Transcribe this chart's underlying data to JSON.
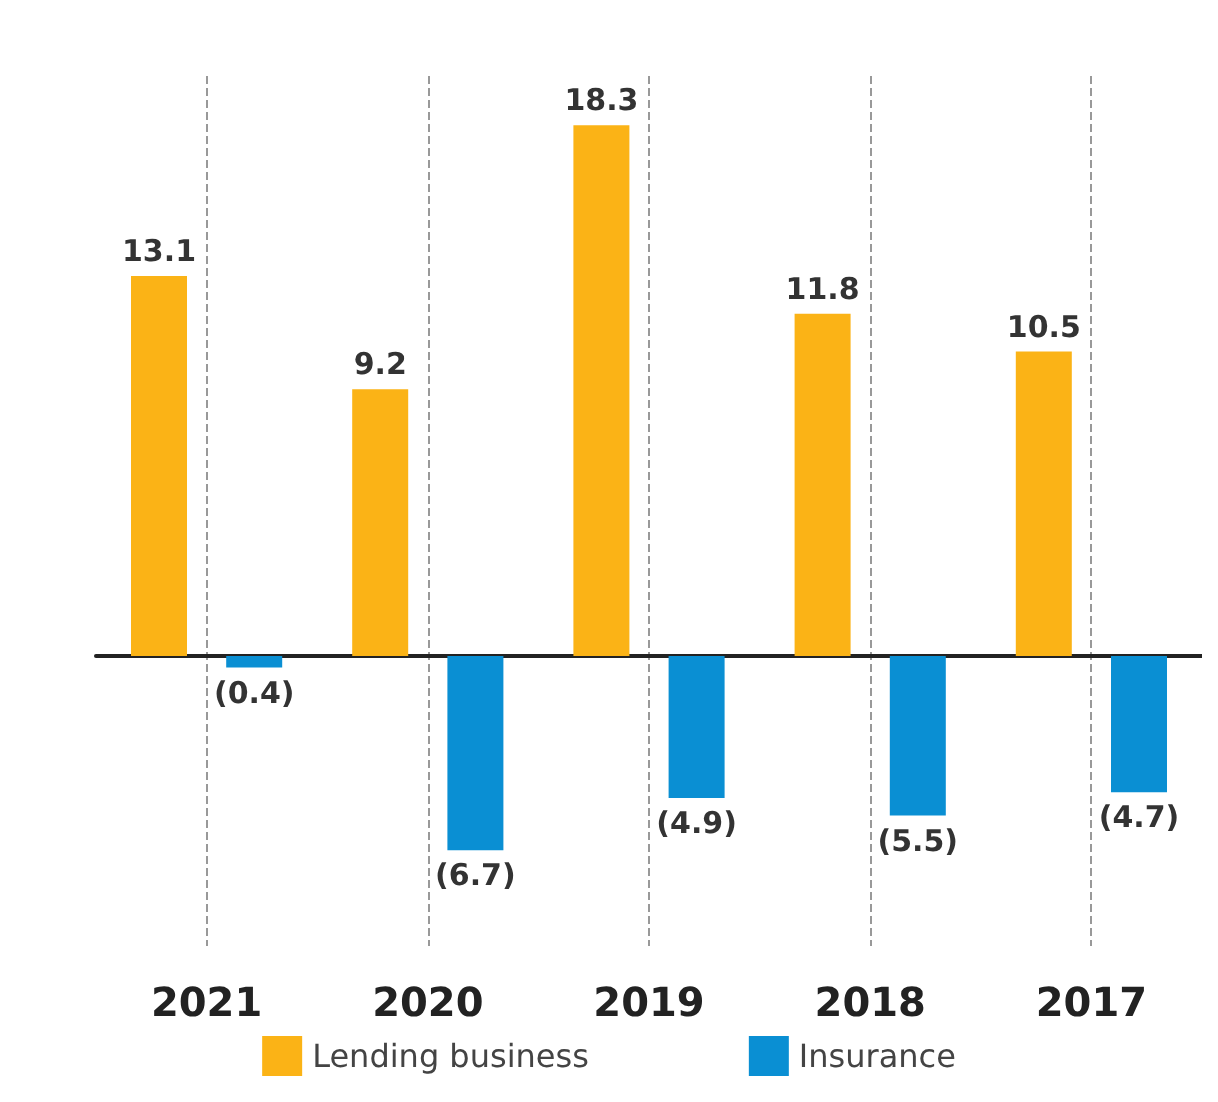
{
  "chart_data": {
    "type": "bar",
    "categories": [
      "2021",
      "2020",
      "2019",
      "2018",
      "2017"
    ],
    "series": [
      {
        "name": "Lending business",
        "color": "#fbb316",
        "values": [
          13.1,
          9.2,
          18.3,
          11.8,
          10.5
        ],
        "value_labels": [
          "13.1",
          "9.2",
          "18.3",
          "11.8",
          "10.5"
        ]
      },
      {
        "name": "Insurance",
        "color": "#0a8fd3",
        "values": [
          -0.4,
          -6.7,
          -4.9,
          -5.5,
          -4.7
        ],
        "value_labels": [
          "(0.4)",
          "(6.7)",
          "(4.9)",
          "(5.5)",
          "(4.7)"
        ]
      }
    ],
    "grid": "x",
    "legend": "bottom"
  }
}
